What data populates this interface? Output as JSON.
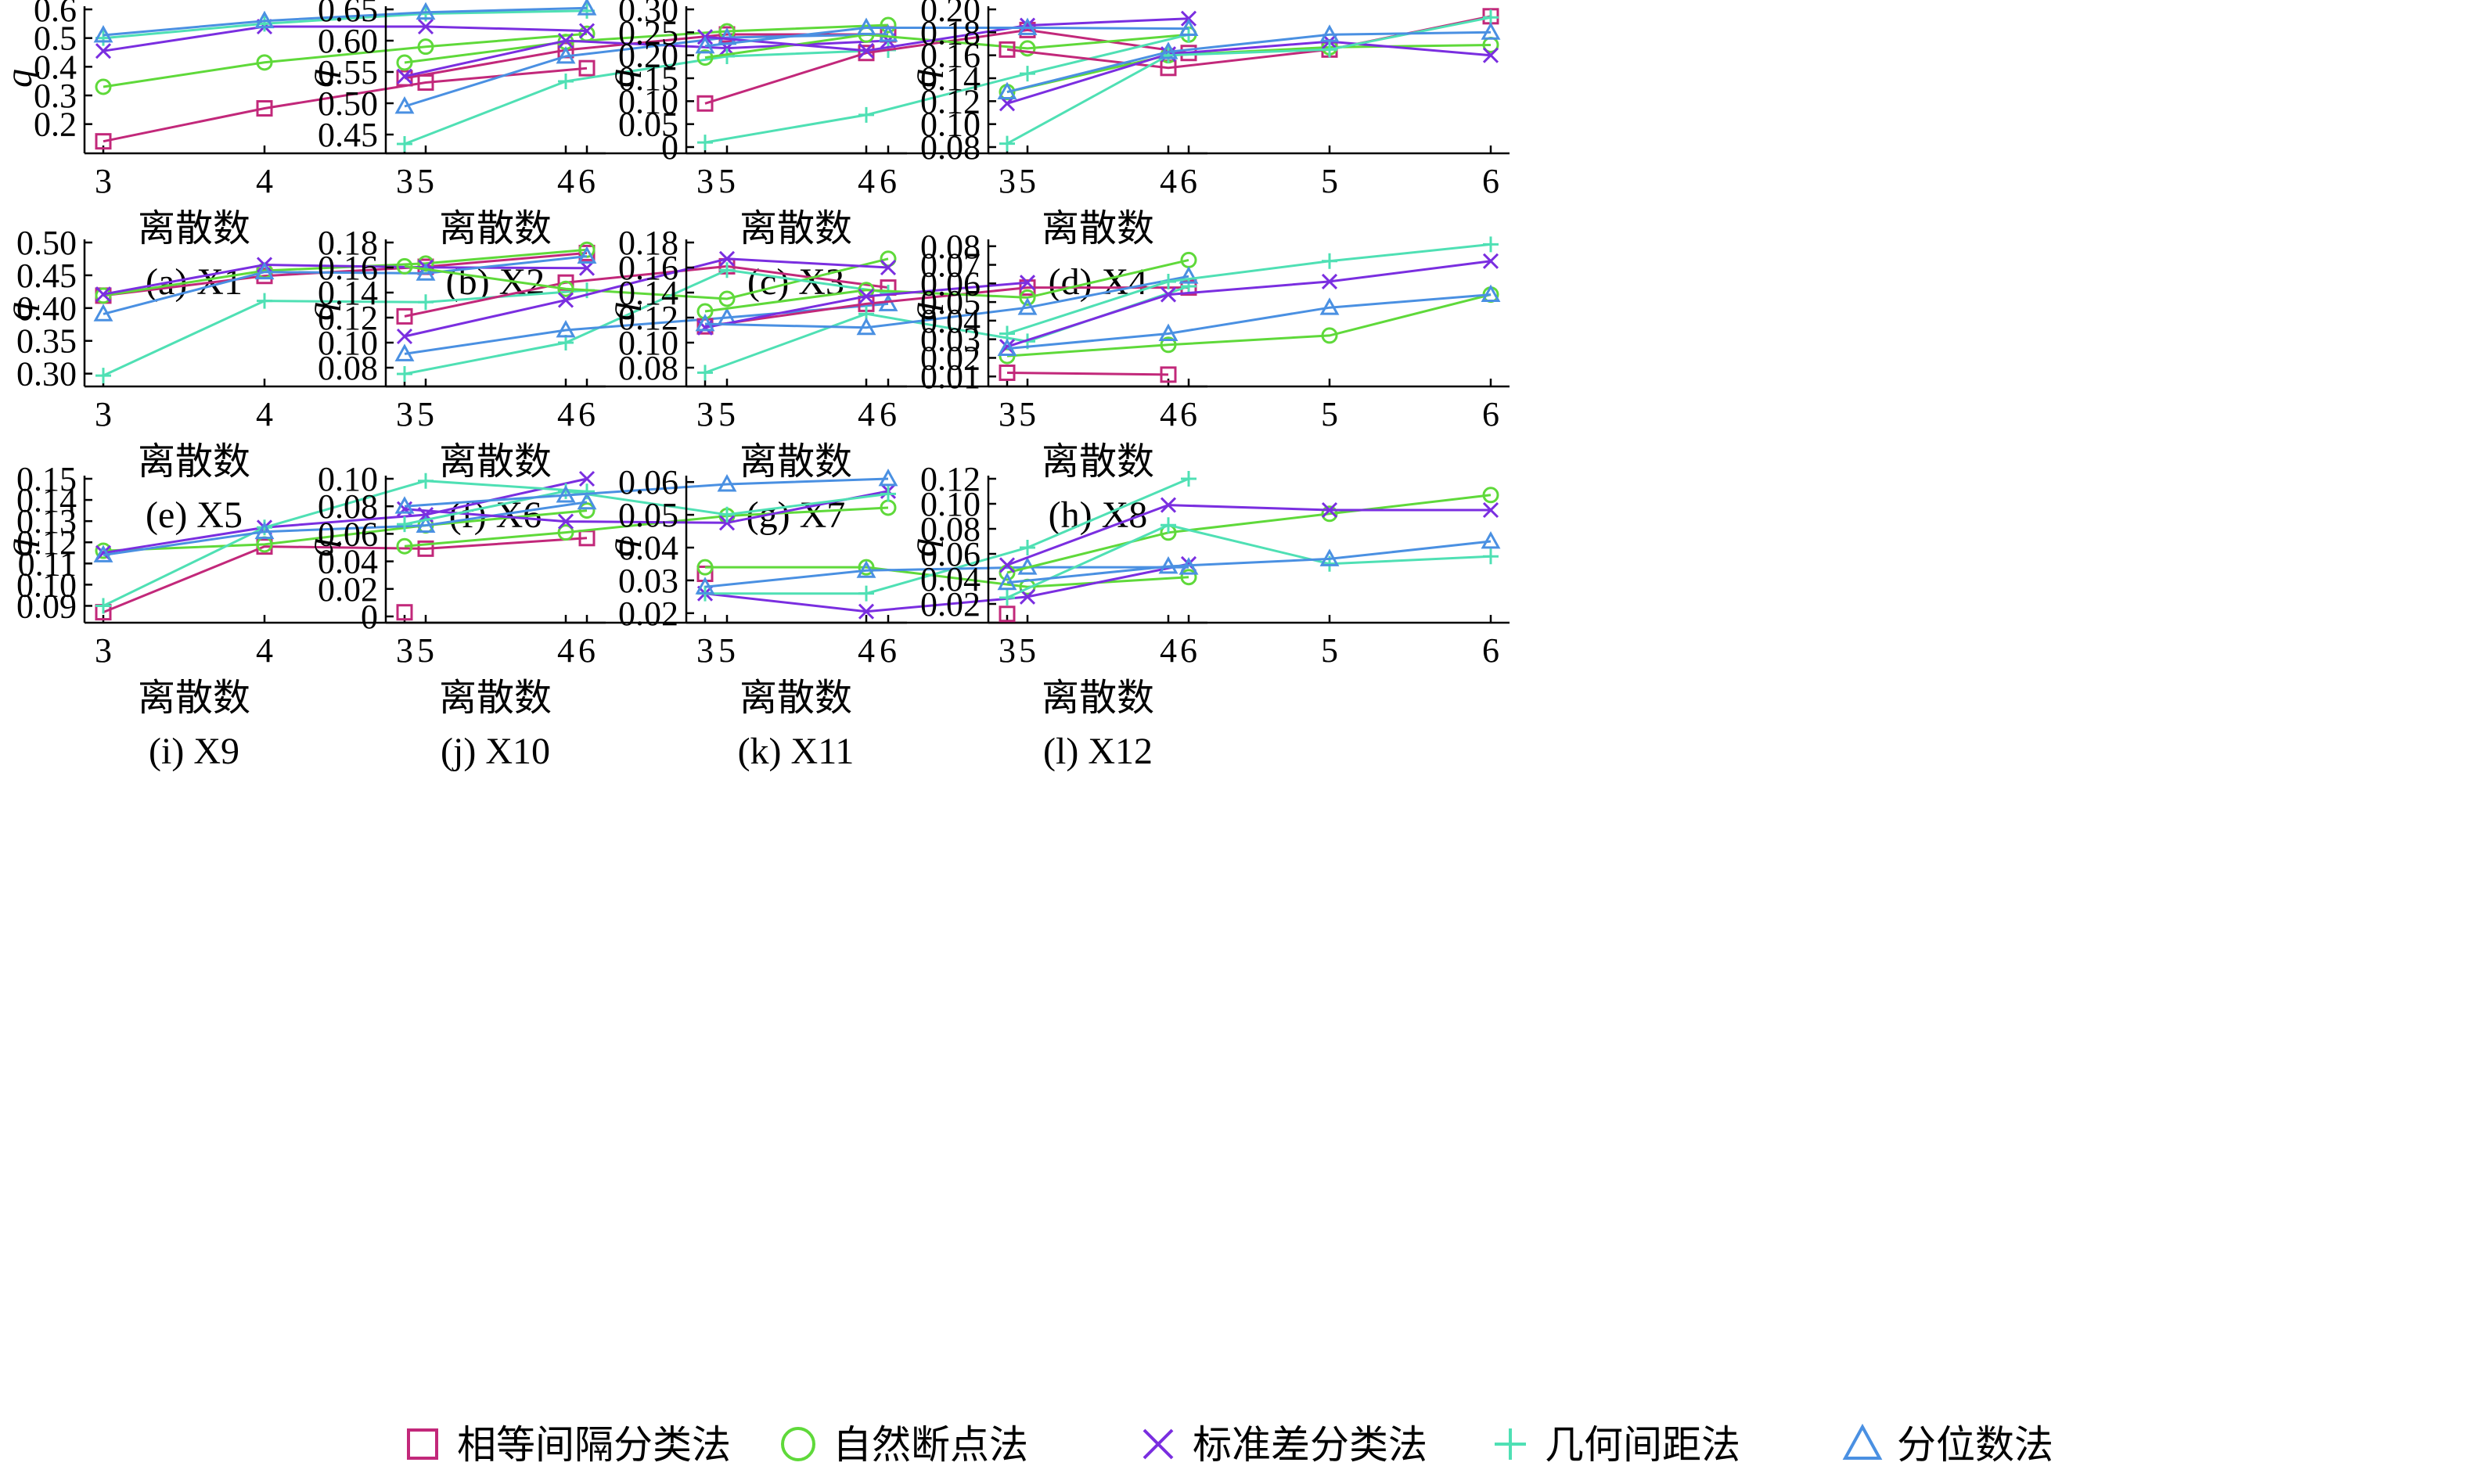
{
  "colors": {
    "equal_interval": "#c2287a",
    "natural_breaks": "#5fd93a",
    "std_dev": "#7a2ee0",
    "geometric": "#4fe0b4",
    "quantile": "#4a90e2"
  },
  "legend": [
    {
      "key": "equal_interval",
      "label": "相等间隔分类法",
      "marker": "square"
    },
    {
      "key": "natural_breaks",
      "label": "自然断点法",
      "marker": "circle"
    },
    {
      "key": "std_dev",
      "label": "标准差分类法",
      "marker": "x"
    },
    {
      "key": "geometric",
      "label": "几何间距法",
      "marker": "plus"
    },
    {
      "key": "quantile",
      "label": "分位数法",
      "marker": "triangle"
    }
  ],
  "chart_data": [
    {
      "type": "line",
      "title": "(a) X1",
      "xlabel": "离散数",
      "ylabel": "q",
      "categories": [
        3,
        4,
        5,
        6
      ],
      "ylim": [
        0.12,
        0.6
      ],
      "yticks": [
        0.2,
        0.3,
        0.4,
        0.5,
        0.6
      ],
      "ytick_labels": [
        "0.2",
        "0.3",
        "0.4",
        "0.5",
        "0.6"
      ],
      "series": [
        {
          "name": "equal_interval",
          "values": [
            0.14,
            0.255,
            0.345,
            0.395
          ]
        },
        {
          "name": "natural_breaks",
          "values": [
            0.33,
            0.415,
            0.47,
            0.515
          ]
        },
        {
          "name": "std_dev",
          "values": [
            0.455,
            0.54,
            0.54,
            0.525
          ]
        },
        {
          "name": "geometric",
          "values": [
            0.5,
            0.55,
            0.585,
            0.595
          ]
        },
        {
          "name": "quantile",
          "values": [
            0.51,
            0.56,
            0.59,
            0.605
          ]
        }
      ]
    },
    {
      "type": "line",
      "title": "(b) X2",
      "xlabel": "离散数",
      "ylabel": "q",
      "categories": [
        3,
        4,
        5,
        6
      ],
      "ylim": [
        0.43,
        0.65
      ],
      "yticks": [
        0.45,
        0.5,
        0.55,
        0.6,
        0.65
      ],
      "ytick_labels": [
        "0.45",
        "0.50",
        "0.55",
        "0.60",
        "0.65"
      ],
      "series": [
        {
          "name": "equal_interval",
          "values": [
            0.54,
            0.585,
            0.61,
            0.61
          ]
        },
        {
          "name": "natural_breaks",
          "values": [
            0.565,
            0.598,
            0.615,
            0.625
          ]
        },
        {
          "name": "std_dev",
          "values": [
            0.543,
            0.6,
            0.588,
            0.6
          ]
        },
        {
          "name": "geometric",
          "values": [
            0.435,
            0.535,
            0.575,
            0.585
          ]
        },
        {
          "name": "quantile",
          "values": [
            0.495,
            0.575,
            0.605,
            0.61
          ]
        }
      ]
    },
    {
      "type": "line",
      "title": "(c) X3",
      "xlabel": "离散数",
      "ylabel": "q",
      "categories": [
        3,
        4,
        5,
        6
      ],
      "ylim": [
        0,
        0.3
      ],
      "yticks": [
        0,
        0.05,
        0.1,
        0.15,
        0.2,
        0.25,
        0.3
      ],
      "ytick_labels": [
        "0",
        "0.05",
        "0.10",
        "0.15",
        "0.20",
        "0.25",
        "0.30"
      ],
      "series": [
        {
          "name": "equal_interval",
          "values": [
            0.095,
            0.205,
            0.255,
            0.205
          ]
        },
        {
          "name": "natural_breaks",
          "values": [
            0.195,
            0.245,
            0.215,
            0.245
          ]
        },
        {
          "name": "std_dev",
          "values": [
            0.24,
            0.21,
            0.265,
            0.28
          ]
        },
        {
          "name": "geometric",
          "values": [
            0.01,
            0.07,
            0.16,
            0.245
          ]
        },
        {
          "name": "quantile",
          "values": [
            0.22,
            0.26,
            0.26,
            0.258
          ]
        }
      ]
    },
    {
      "type": "line",
      "title": "(d) X4",
      "xlabel": "离散数",
      "ylabel": "q",
      "categories": [
        3,
        4,
        5,
        6
      ],
      "ylim": [
        0.08,
        0.2
      ],
      "yticks": [
        0.08,
        0.1,
        0.12,
        0.14,
        0.16,
        0.18,
        0.2
      ],
      "ytick_labels": [
        "0.08",
        "0.10",
        "0.12",
        "0.14",
        "0.16",
        "0.18",
        "0.20"
      ],
      "series": [
        {
          "name": "equal_interval",
          "values": [
            0.165,
            0.149,
            0.165,
            0.194
          ]
        },
        {
          "name": "natural_breaks",
          "values": [
            0.128,
            0.16,
            0.167,
            0.169
          ]
        },
        {
          "name": "std_dev",
          "values": [
            0.118,
            0.161,
            0.172,
            0.16
          ]
        },
        {
          "name": "geometric",
          "values": [
            0.083,
            0.16,
            0.165,
            0.193
          ]
        },
        {
          "name": "quantile",
          "values": [
            0.128,
            0.163,
            0.178,
            0.18
          ]
        }
      ]
    },
    {
      "type": "line",
      "title": "(e) X5",
      "xlabel": "离散数",
      "ylabel": "q",
      "categories": [
        3,
        4,
        5,
        6
      ],
      "ylim": [
        0.29,
        0.5
      ],
      "yticks": [
        0.3,
        0.35,
        0.4,
        0.45,
        0.5
      ],
      "ytick_labels": [
        "0.30",
        "0.35",
        "0.40",
        "0.45",
        "0.50"
      ],
      "series": [
        {
          "name": "equal_interval",
          "values": [
            0.419,
            0.449,
            0.463,
            0.484
          ]
        },
        {
          "name": "natural_breaks",
          "values": [
            0.419,
            0.457,
            0.468,
            0.489
          ]
        },
        {
          "name": "std_dev",
          "values": [
            0.421,
            0.466,
            0.462,
            0.461
          ]
        },
        {
          "name": "geometric",
          "values": [
            0.297,
            0.411,
            0.409,
            0.427
          ]
        },
        {
          "name": "quantile",
          "values": [
            0.391,
            0.455,
            0.453,
            0.479
          ]
        }
      ]
    },
    {
      "type": "line",
      "title": "(f) X6",
      "xlabel": "离散数",
      "ylabel": "q",
      "categories": [
        3,
        4,
        5,
        6
      ],
      "ylim": [
        0.07,
        0.18
      ],
      "yticks": [
        0.08,
        0.1,
        0.12,
        0.14,
        0.16,
        0.18
      ],
      "ytick_labels": [
        "0.08",
        "0.10",
        "0.12",
        "0.14",
        "0.16",
        "0.18"
      ],
      "series": [
        {
          "name": "equal_interval",
          "values": [
            0.121,
            0.148,
            0.161,
            0.144
          ]
        },
        {
          "name": "natural_breaks",
          "values": [
            0.161,
            0.143,
            0.135,
            0.167
          ]
        },
        {
          "name": "std_dev",
          "values": [
            0.105,
            0.134,
            0.167,
            0.16
          ]
        },
        {
          "name": "geometric",
          "values": [
            0.075,
            0.1,
            0.158,
            0.14
          ]
        },
        {
          "name": "quantile",
          "values": [
            0.091,
            0.11,
            0.12,
            0.131
          ]
        }
      ]
    },
    {
      "type": "line",
      "title": "(g) X7",
      "xlabel": "离散数",
      "ylabel": "q",
      "categories": [
        3,
        4,
        5,
        6
      ],
      "ylim": [
        0.07,
        0.18
      ],
      "yticks": [
        0.08,
        0.1,
        0.12,
        0.14,
        0.16,
        0.18
      ],
      "ytick_labels": [
        "0.08",
        "0.10",
        "0.12",
        "0.14",
        "0.16",
        "0.18"
      ],
      "series": [
        {
          "name": "equal_interval",
          "values": [
            0.113,
            0.131,
            0.144,
            0.144
          ]
        },
        {
          "name": "natural_breaks",
          "values": [
            0.125,
            0.142,
            0.136,
            0.166
          ]
        },
        {
          "name": "std_dev",
          "values": [
            0.112,
            0.137,
            0.148,
            null
          ]
        },
        {
          "name": "geometric",
          "values": [
            0.076,
            0.123,
            0.101,
            0.145
          ]
        },
        {
          "name": "quantile",
          "values": [
            0.115,
            0.112,
            0.128,
            0.153
          ]
        }
      ]
    },
    {
      "type": "line",
      "title": "(h) X8",
      "xlabel": "离散数",
      "ylabel": "q",
      "categories": [
        3,
        4,
        5,
        6
      ],
      "ylim": [
        0.008,
        0.082
      ],
      "yticks": [
        0.01,
        0.02,
        0.03,
        0.04,
        0.05,
        0.06,
        0.07,
        0.08
      ],
      "ytick_labels": [
        "0.01",
        "0.02",
        "0.03",
        "0.04",
        "0.05",
        "0.06",
        "0.07",
        "0.08"
      ],
      "series": [
        {
          "name": "equal_interval",
          "values": [
            0.012,
            0.011,
            null,
            null
          ]
        },
        {
          "name": "natural_breaks",
          "values": [
            0.021,
            0.027,
            0.032,
            0.054
          ]
        },
        {
          "name": "std_dev",
          "values": [
            0.026,
            0.054,
            0.061,
            0.072
          ]
        },
        {
          "name": "geometric",
          "values": [
            0.033,
            0.061,
            0.072,
            0.081
          ]
        },
        {
          "name": "quantile",
          "values": [
            0.025,
            0.033,
            0.047,
            0.054
          ]
        }
      ]
    },
    {
      "type": "line",
      "title": "(i) X9",
      "xlabel": "离散数",
      "ylabel": "q",
      "categories": [
        3,
        4,
        5,
        6
      ],
      "ylim": [
        0.085,
        0.15
      ],
      "yticks": [
        0.09,
        0.1,
        0.11,
        0.12,
        0.13,
        0.14,
        0.15
      ],
      "ytick_labels": [
        "0.09",
        "0.10",
        "0.11",
        "0.12",
        "0.13",
        "0.14",
        "0.15"
      ],
      "series": [
        {
          "name": "equal_interval",
          "values": [
            0.087,
            0.118,
            0.117,
            0.122
          ]
        },
        {
          "name": "natural_breaks",
          "values": [
            0.116,
            0.119,
            0.128,
            0.135
          ]
        },
        {
          "name": "std_dev",
          "values": [
            0.115,
            0.127,
            0.133,
            0.15
          ]
        },
        {
          "name": "geometric",
          "values": [
            0.09,
            0.127,
            0.149,
            0.144
          ]
        },
        {
          "name": "quantile",
          "values": [
            0.114,
            0.125,
            0.128,
            0.139
          ]
        }
      ]
    },
    {
      "type": "line",
      "title": "(j) X10",
      "xlabel": "离散数",
      "ylabel": "q",
      "categories": [
        3,
        4,
        5,
        6
      ],
      "ylim": [
        0,
        0.1
      ],
      "yticks": [
        0,
        0.02,
        0.04,
        0.06,
        0.08,
        0.1
      ],
      "ytick_labels": [
        "0",
        "0.02",
        "0.04",
        "0.06",
        "0.08",
        "0.10"
      ],
      "series": [
        {
          "name": "equal_interval",
          "values": [
            0.003,
            null,
            null,
            null
          ]
        },
        {
          "name": "natural_breaks",
          "values": [
            0.051,
            0.061,
            0.073,
            0.079
          ]
        },
        {
          "name": "std_dev",
          "values": [
            0.078,
            0.069,
            0.068,
            0.091
          ]
        },
        {
          "name": "geometric",
          "values": [
            0.067,
            0.091,
            0.074,
            0.089
          ]
        },
        {
          "name": "quantile",
          "values": [
            0.08,
            0.088,
            0.096,
            0.1
          ]
        }
      ]
    },
    {
      "type": "line",
      "title": "(k) X11",
      "xlabel": "离散数",
      "ylabel": "q",
      "categories": [
        3,
        4,
        5,
        6
      ],
      "ylim": [
        0.019,
        0.061
      ],
      "yticks": [
        0.02,
        0.03,
        0.04,
        0.05,
        0.06
      ],
      "ytick_labels": [
        "0.02",
        "0.03",
        "0.04",
        "0.05",
        "0.06"
      ],
      "series": [
        {
          "name": "equal_interval",
          "values": [
            0.032,
            null,
            null,
            null
          ]
        },
        {
          "name": "natural_breaks",
          "values": [
            0.034,
            0.034,
            0.028,
            0.031
          ]
        },
        {
          "name": "std_dev",
          "values": [
            0.026,
            0.0205,
            0.025,
            0.035
          ]
        },
        {
          "name": "geometric",
          "values": [
            0.026,
            0.026,
            0.04,
            0.061
          ]
        },
        {
          "name": "quantile",
          "values": [
            0.028,
            0.033,
            0.034,
            0.034
          ]
        }
      ]
    },
    {
      "type": "line",
      "title": "(l) X12",
      "xlabel": "离散数",
      "ylabel": "q",
      "categories": [
        3,
        4,
        5,
        6
      ],
      "ylim": [
        0.01,
        0.12
      ],
      "yticks": [
        0.02,
        0.04,
        0.06,
        0.08,
        0.1,
        0.12
      ],
      "ytick_labels": [
        "0.02",
        "0.04",
        "0.06",
        "0.08",
        "0.10",
        "0.12"
      ],
      "series": [
        {
          "name": "equal_interval",
          "values": [
            0.012,
            null,
            null,
            null
          ]
        },
        {
          "name": "natural_breaks",
          "values": [
            0.045,
            0.077,
            0.092,
            0.107
          ]
        },
        {
          "name": "std_dev",
          "values": [
            0.051,
            0.099,
            0.095,
            0.095
          ]
        },
        {
          "name": "geometric",
          "values": [
            0.025,
            0.083,
            0.052,
            0.058
          ]
        },
        {
          "name": "quantile",
          "values": [
            0.037,
            0.05,
            0.056,
            0.07
          ]
        }
      ]
    }
  ]
}
